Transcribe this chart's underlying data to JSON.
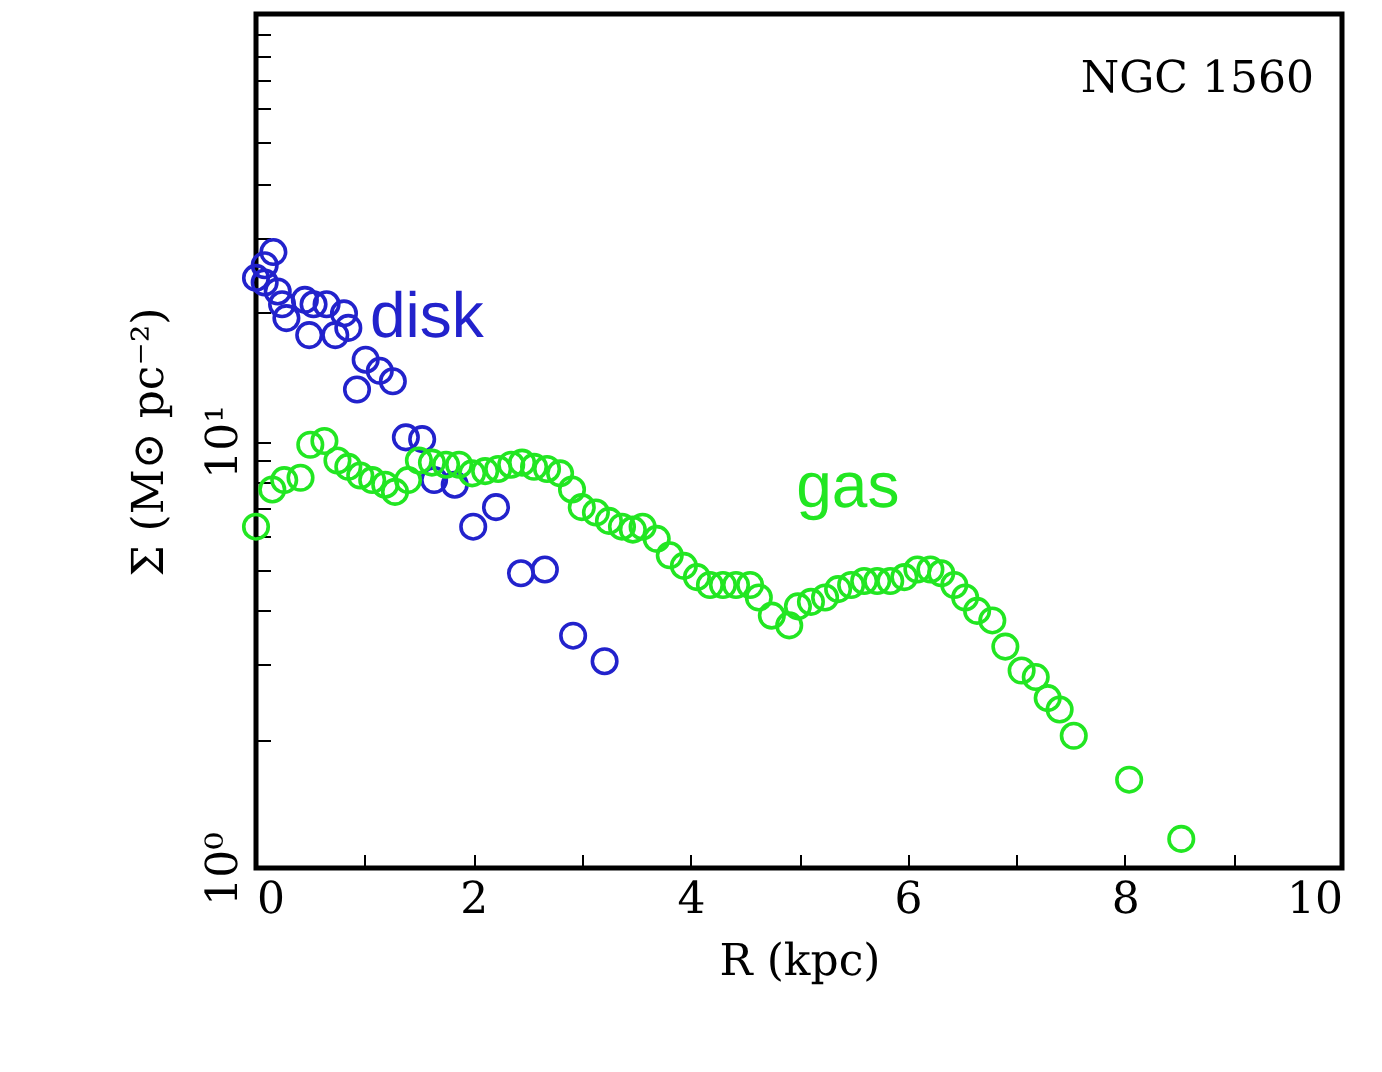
{
  "chart_data": {
    "type": "scatter",
    "xlabel": "R (kpc)",
    "ylabel": "Σ (M⊙ pc⁻²)",
    "annotations": [
      "NGC 1560"
    ],
    "log": true,
    "marker": "circle",
    "xlim": [
      0,
      10
    ],
    "ylim": [
      1,
      100
    ],
    "xticks": [
      0,
      {
        "value": 1,
        "label": null
      },
      2,
      {
        "value": 3,
        "label": null
      },
      4,
      {
        "value": 5,
        "label": null
      },
      6,
      {
        "value": 7,
        "label": null
      },
      8,
      {
        "value": 9,
        "label": null
      },
      10
    ],
    "yticks": [
      {
        "value": 1,
        "label": "10⁰"
      },
      {
        "value": 2,
        "label": null
      },
      {
        "value": 3,
        "label": null
      },
      {
        "value": 4,
        "label": null
      },
      {
        "value": 5,
        "label": null
      },
      {
        "value": 6,
        "label": null
      },
      {
        "value": 7,
        "label": null
      },
      {
        "value": 8,
        "label": null
      },
      {
        "value": 9,
        "label": null
      },
      {
        "value": 10,
        "label": "10¹"
      },
      {
        "value": 20,
        "label": null
      },
      {
        "value": 30,
        "label": null
      },
      {
        "value": 40,
        "label": null
      },
      {
        "value": 50,
        "label": null
      },
      {
        "value": 60,
        "label": null
      },
      {
        "value": 70,
        "label": null
      },
      {
        "value": 80,
        "label": null
      },
      {
        "value": 90,
        "label": null
      },
      {
        "value": 100,
        "label": null
      }
    ],
    "series": [
      {
        "name": "disk",
        "color": "#2222cc",
        "x": [
          0,
          0.08,
          0.08,
          0.16,
          0.2,
          0.24,
          0.28,
          0.45,
          0.49,
          0.53,
          0.65,
          0.73,
          0.81,
          0.85,
          0.93,
          1.01,
          1.14,
          1.26,
          1.38,
          1.53,
          1.64,
          1.83,
          2.0,
          2.21,
          2.44,
          2.66,
          2.92,
          3.21
        ],
        "values": [
          24.1,
          25.8,
          23.5,
          27.7,
          22.4,
          20.9,
          19.4,
          21.4,
          17.7,
          20.9,
          20.9,
          17.7,
          19.9,
          18.4,
          13.2,
          15.5,
          14.6,
          13.8,
          10.2,
          10.1,
          8.1,
          7.9,
          6.3,
          7.0,
          4.9,
          5.0,
          3.5,
          3.05
        ]
      },
      {
        "name": "gas",
        "color": "#22e622",
        "x": [
          0,
          0.15,
          0.26,
          0.41,
          0.5,
          0.63,
          0.75,
          0.85,
          0.96,
          1.07,
          1.19,
          1.28,
          1.4,
          1.5,
          1.62,
          1.75,
          1.87,
          1.99,
          2.11,
          2.23,
          2.35,
          2.45,
          2.56,
          2.68,
          2.8,
          2.91,
          3.0,
          3.13,
          3.25,
          3.37,
          3.47,
          3.56,
          3.69,
          3.81,
          3.94,
          4.06,
          4.18,
          4.3,
          4.42,
          4.55,
          4.63,
          4.75,
          4.91,
          4.99,
          5.11,
          5.24,
          5.36,
          5.48,
          5.6,
          5.72,
          5.84,
          5.97,
          6.09,
          6.21,
          6.31,
          6.43,
          6.53,
          6.64,
          6.78,
          6.9,
          7.05,
          7.18,
          7.29,
          7.4,
          7.53,
          8.04,
          8.52
        ],
        "values": [
          6.3,
          7.7,
          8.1,
          8.2,
          9.8,
          10,
          9.0,
          8.7,
          8.3,
          8.1,
          7.9,
          7.6,
          8.1,
          9.0,
          8.9,
          8.8,
          8.8,
          8.4,
          8.5,
          8.6,
          8.8,
          8.9,
          8.7,
          8.6,
          8.4,
          7.7,
          7.0,
          6.8,
          6.5,
          6.3,
          6.2,
          6.3,
          5.9,
          5.4,
          5.1,
          4.8,
          4.6,
          4.6,
          4.6,
          4.6,
          4.3,
          3.9,
          3.7,
          4.1,
          4.2,
          4.3,
          4.5,
          4.6,
          4.7,
          4.7,
          4.7,
          4.8,
          5.0,
          5.0,
          4.9,
          4.6,
          4.3,
          4.0,
          3.8,
          3.3,
          2.9,
          2.8,
          2.5,
          2.35,
          2.04,
          1.61,
          1.17
        ]
      }
    ]
  }
}
